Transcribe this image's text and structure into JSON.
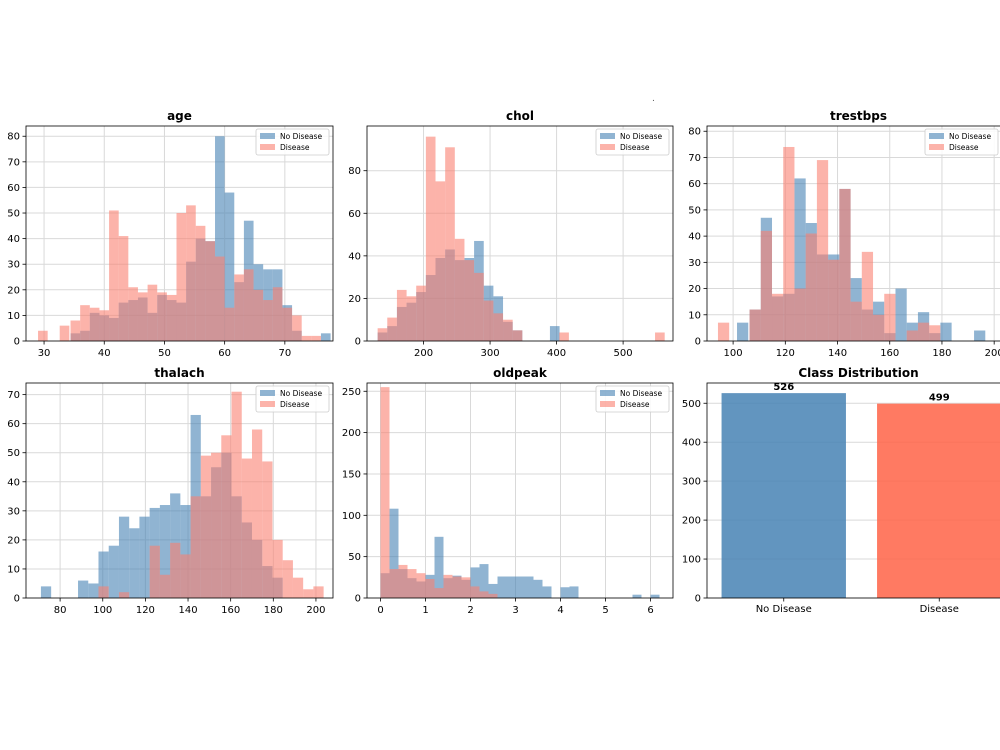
{
  "figure": {
    "colors": {
      "no_disease": "#4682b4",
      "disease": "#fa8072",
      "grid": "#d9d9d9",
      "axis": "#000000"
    }
  },
  "chart_data": [
    {
      "type": "histogram",
      "title": "age",
      "legend": [
        "No Disease",
        "Disease"
      ],
      "legend_position": "top-right",
      "xlim": [
        27,
        78
      ],
      "ylim": [
        0,
        84
      ],
      "bin_width": 1.6,
      "xticks": [
        30,
        40,
        50,
        60,
        70
      ],
      "yticks": [
        0,
        10,
        20,
        30,
        40,
        50,
        60,
        70,
        80
      ],
      "series": [
        {
          "name": "No Disease",
          "bins": [
            [
              34.4,
              3
            ],
            [
              36.0,
              4
            ],
            [
              37.6,
              11
            ],
            [
              39.2,
              10
            ],
            [
              40.8,
              9
            ],
            [
              42.4,
              15
            ],
            [
              44.0,
              16
            ],
            [
              45.6,
              17
            ],
            [
              47.2,
              11
            ],
            [
              48.8,
              18
            ],
            [
              50.4,
              16
            ],
            [
              52.0,
              15
            ],
            [
              53.6,
              31
            ],
            [
              55.2,
              40
            ],
            [
              56.8,
              39
            ],
            [
              58.4,
              80
            ],
            [
              60.0,
              58
            ],
            [
              61.6,
              23
            ],
            [
              63.2,
              47
            ],
            [
              64.8,
              30
            ],
            [
              66.4,
              28
            ],
            [
              68.0,
              28
            ],
            [
              69.6,
              14
            ],
            [
              71.2,
              4
            ],
            [
              76.0,
              3
            ]
          ]
        },
        {
          "name": "Disease",
          "bins": [
            [
              29.0,
              4
            ],
            [
              32.6,
              6
            ],
            [
              34.4,
              8
            ],
            [
              36.0,
              14
            ],
            [
              37.6,
              13
            ],
            [
              39.2,
              12
            ],
            [
              40.8,
              51
            ],
            [
              42.4,
              41
            ],
            [
              44.0,
              21
            ],
            [
              45.6,
              19
            ],
            [
              47.2,
              22
            ],
            [
              48.8,
              19
            ],
            [
              50.4,
              18
            ],
            [
              52.0,
              50
            ],
            [
              53.6,
              53
            ],
            [
              55.2,
              45
            ],
            [
              56.8,
              39
            ],
            [
              58.4,
              33
            ],
            [
              60.0,
              13
            ],
            [
              61.6,
              26
            ],
            [
              63.2,
              28
            ],
            [
              64.8,
              20
            ],
            [
              66.4,
              16
            ],
            [
              68.0,
              21
            ],
            [
              69.6,
              13
            ],
            [
              71.2,
              10
            ],
            [
              72.8,
              2
            ],
            [
              74.4,
              2
            ]
          ]
        }
      ]
    },
    {
      "type": "histogram",
      "title": "chol",
      "legend": [
        "No Disease",
        "Disease"
      ],
      "legend_position": "top-right",
      "xlim": [
        115,
        575
      ],
      "ylim": [
        0,
        101
      ],
      "bin_width": 14.5,
      "xticks": [
        200,
        300,
        400,
        500
      ],
      "yticks": [
        0,
        20,
        40,
        60,
        80
      ],
      "series": [
        {
          "name": "No Disease",
          "bins": [
            [
              131,
              4
            ],
            [
              145.5,
              7
            ],
            [
              160,
              16
            ],
            [
              174.5,
              18
            ],
            [
              189,
              23
            ],
            [
              203.5,
              31
            ],
            [
              218,
              39
            ],
            [
              232.5,
              43
            ],
            [
              247,
              38
            ],
            [
              261.5,
              39
            ],
            [
              276,
              47
            ],
            [
              290.5,
              26
            ],
            [
              305,
              21
            ],
            [
              319.5,
              9
            ],
            [
              334,
              5
            ],
            [
              390,
              7
            ]
          ]
        },
        {
          "name": "Disease",
          "bins": [
            [
              131,
              6
            ],
            [
              145.5,
              11
            ],
            [
              160,
              24
            ],
            [
              174.5,
              21
            ],
            [
              189,
              26
            ],
            [
              203.5,
              96
            ],
            [
              218,
              75
            ],
            [
              232.5,
              91
            ],
            [
              247,
              48
            ],
            [
              261.5,
              38
            ],
            [
              276,
              32
            ],
            [
              290.5,
              19
            ],
            [
              305,
              13
            ],
            [
              319.5,
              10
            ],
            [
              334,
              5
            ],
            [
              404,
              4
            ],
            [
              548,
              4
            ]
          ]
        }
      ]
    },
    {
      "type": "histogram",
      "title": "trestbps",
      "legend": [
        "No Disease",
        "Disease"
      ],
      "legend_position": "top-right",
      "xlim": [
        90,
        203
      ],
      "ylim": [
        0,
        82
      ],
      "bin_width": 4.3,
      "xticks": [
        100,
        120,
        140,
        160,
        180,
        200
      ],
      "yticks": [
        0,
        10,
        20,
        30,
        40,
        50,
        60,
        70,
        80
      ],
      "series": [
        {
          "name": "No Disease",
          "bins": [
            [
              101.5,
              7
            ],
            [
              106.3,
              12
            ],
            [
              110.6,
              47
            ],
            [
              114.9,
              17
            ],
            [
              119.2,
              18
            ],
            [
              123.5,
              62
            ],
            [
              127.8,
              45
            ],
            [
              132.1,
              33
            ],
            [
              136.4,
              33
            ],
            [
              140.7,
              58
            ],
            [
              145,
              24
            ],
            [
              149.3,
              12
            ],
            [
              153.6,
              15
            ],
            [
              157.9,
              3
            ],
            [
              162.2,
              20
            ],
            [
              166.5,
              7
            ],
            [
              170.8,
              11
            ],
            [
              175.1,
              3
            ],
            [
              179.4,
              7
            ],
            [
              192.3,
              4
            ]
          ]
        },
        {
          "name": "Disease",
          "bins": [
            [
              94.2,
              7
            ],
            [
              106.3,
              12
            ],
            [
              110.6,
              42
            ],
            [
              114.9,
              18
            ],
            [
              119.2,
              74
            ],
            [
              123.5,
              20
            ],
            [
              127.8,
              41
            ],
            [
              132.1,
              69
            ],
            [
              136.4,
              31
            ],
            [
              140.7,
              58
            ],
            [
              145,
              15
            ],
            [
              149.3,
              34
            ],
            [
              153.6,
              10
            ],
            [
              157.9,
              18
            ],
            [
              166.5,
              4
            ],
            [
              170.8,
              7
            ],
            [
              175.1,
              6
            ]
          ]
        }
      ]
    },
    {
      "type": "histogram",
      "title": "thalach",
      "legend": [
        "No Disease",
        "Disease"
      ],
      "legend_position": "top-right",
      "xlim": [
        64,
        208
      ],
      "ylim": [
        0,
        74
      ],
      "bin_width": 4.8,
      "xticks": [
        80,
        100,
        120,
        140,
        160,
        180,
        200
      ],
      "yticks": [
        0,
        10,
        20,
        30,
        40,
        50,
        60,
        70
      ],
      "series": [
        {
          "name": "No Disease",
          "bins": [
            [
              71,
              4
            ],
            [
              88.4,
              6
            ],
            [
              93.2,
              5
            ],
            [
              98,
              16
            ],
            [
              102.8,
              18
            ],
            [
              107.6,
              28
            ],
            [
              112.4,
              24
            ],
            [
              117.2,
              28
            ],
            [
              122,
              31
            ],
            [
              126.8,
              32
            ],
            [
              131.6,
              36
            ],
            [
              136.4,
              32
            ],
            [
              141.2,
              63
            ],
            [
              146,
              35
            ],
            [
              150.8,
              45
            ],
            [
              155.6,
              50
            ],
            [
              160.4,
              35
            ],
            [
              165.2,
              26
            ],
            [
              170,
              20
            ],
            [
              174.8,
              11
            ],
            [
              179.6,
              7
            ]
          ]
        },
        {
          "name": "Disease",
          "bins": [
            [
              98,
              4
            ],
            [
              107.6,
              2
            ],
            [
              122,
              18
            ],
            [
              126.8,
              8
            ],
            [
              131.6,
              19
            ],
            [
              136.4,
              15
            ],
            [
              141.2,
              35
            ],
            [
              146,
              49
            ],
            [
              150.8,
              50
            ],
            [
              155.6,
              56
            ],
            [
              160.4,
              71
            ],
            [
              165.2,
              48
            ],
            [
              170,
              58
            ],
            [
              174.8,
              47
            ],
            [
              179.6,
              20
            ],
            [
              184.4,
              13
            ],
            [
              189.2,
              7
            ],
            [
              194,
              3
            ],
            [
              198.8,
              4
            ]
          ]
        }
      ]
    },
    {
      "type": "histogram",
      "title": "oldpeak",
      "legend": [
        "No Disease",
        "Disease"
      ],
      "legend_position": "top-right",
      "xlim": [
        -0.3,
        6.5
      ],
      "ylim": [
        0,
        260
      ],
      "bin_width": 0.2,
      "xticks": [
        0,
        1,
        2,
        3,
        4,
        5,
        6
      ],
      "yticks": [
        0,
        50,
        100,
        150,
        200,
        250
      ],
      "series": [
        {
          "name": "No Disease",
          "bins": [
            [
              0,
              30
            ],
            [
              0.2,
              108
            ],
            [
              0.4,
              35
            ],
            [
              0.6,
              24
            ],
            [
              0.8,
              20
            ],
            [
              1.0,
              28
            ],
            [
              1.2,
              74
            ],
            [
              1.4,
              24
            ],
            [
              1.6,
              27
            ],
            [
              1.8,
              22
            ],
            [
              2.0,
              37
            ],
            [
              2.2,
              41
            ],
            [
              2.4,
              17
            ],
            [
              2.6,
              26
            ],
            [
              2.8,
              26
            ],
            [
              3.0,
              26
            ],
            [
              3.2,
              26
            ],
            [
              3.4,
              22
            ],
            [
              3.6,
              14
            ],
            [
              4.0,
              13
            ],
            [
              4.2,
              14
            ],
            [
              5.6,
              4
            ],
            [
              6.0,
              4
            ]
          ]
        },
        {
          "name": "Disease",
          "bins": [
            [
              0,
              255
            ],
            [
              0.2,
              35
            ],
            [
              0.4,
              40
            ],
            [
              0.6,
              35
            ],
            [
              0.8,
              30
            ],
            [
              1.0,
              23
            ],
            [
              1.2,
              12
            ],
            [
              1.4,
              28
            ],
            [
              1.6,
              26
            ],
            [
              1.8,
              25
            ],
            [
              2.0,
              14
            ],
            [
              2.2,
              8
            ],
            [
              2.4,
              5
            ]
          ]
        }
      ]
    },
    {
      "type": "bar",
      "title": "Class Distribution",
      "categories": [
        "No Disease",
        "Disease"
      ],
      "values": [
        526,
        499
      ],
      "labels": [
        "526",
        "499"
      ],
      "ylim": [
        0,
        552
      ],
      "yticks": [
        0,
        100,
        200,
        300,
        400,
        500
      ],
      "bar_colors": [
        "#4682b4",
        "#ff6347"
      ]
    }
  ]
}
